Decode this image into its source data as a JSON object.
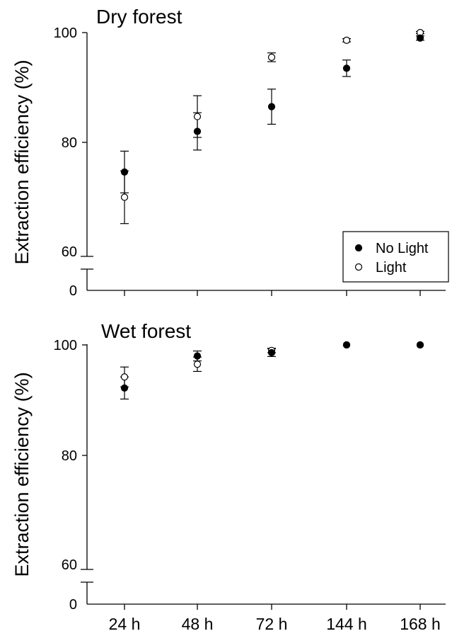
{
  "chart_data": [
    {
      "type": "scatter",
      "title": "Dry forest",
      "ylabel": "Extraction efficiency (%)",
      "xlabel": "",
      "categories": [
        "24 h",
        "48 h",
        "72 h",
        "144 h",
        "168 h"
      ],
      "ylim": [
        55,
        104
      ],
      "y_break": {
        "below": 60,
        "baseline_tick": 0
      },
      "yticks": [
        0,
        60,
        80,
        100
      ],
      "legend": {
        "placement": "bottom-right",
        "entries": [
          "No Light",
          "Light"
        ]
      },
      "series": [
        {
          "name": "No Light",
          "marker": "filled",
          "values": [
            74.6,
            82.0,
            86.5,
            93.5,
            99.0
          ],
          "errors": [
            3.8,
            3.4,
            3.2,
            1.5,
            0.4
          ]
        },
        {
          "name": "Light",
          "marker": "open",
          "values": [
            70.0,
            84.7,
            95.5,
            98.6,
            100.0
          ],
          "errors": [
            4.8,
            3.8,
            0.8,
            0.3,
            0.2
          ]
        }
      ]
    },
    {
      "type": "scatter",
      "title": "Wet forest",
      "ylabel": "Extraction efficiency (%)",
      "xlabel": "",
      "categories": [
        "24 h",
        "48 h",
        "72 h",
        "144 h",
        "168 h"
      ],
      "ylim": [
        55,
        104
      ],
      "y_break": {
        "below": 60,
        "baseline_tick": 0
      },
      "yticks": [
        0,
        60,
        80,
        100
      ],
      "series": [
        {
          "name": "No Light",
          "marker": "filled",
          "values": [
            92.2,
            98.0,
            98.6,
            100.0,
            100.0
          ],
          "errors": [
            2.0,
            0.9,
            0.7,
            0.1,
            0.1
          ]
        },
        {
          "name": "Light",
          "marker": "open",
          "values": [
            94.2,
            96.5,
            99.0,
            100.0,
            100.0
          ],
          "errors": [
            1.8,
            1.3,
            0.4,
            0.1,
            0.1
          ]
        }
      ]
    }
  ]
}
